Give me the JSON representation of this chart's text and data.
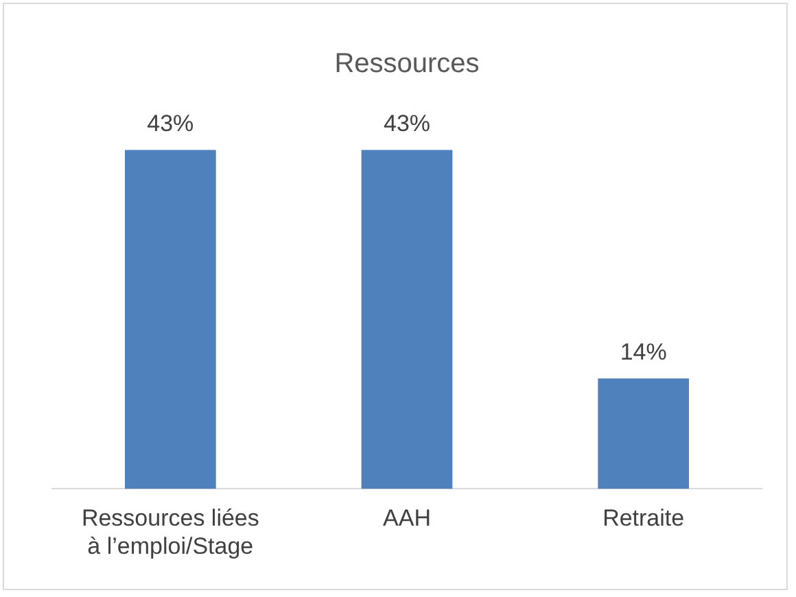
{
  "chart_data": {
    "type": "bar",
    "title": "Ressources",
    "categories": [
      "Ressources liées à l’emploi/Stage",
      "AAH",
      "Retraite"
    ],
    "values": [
      43,
      43,
      14
    ],
    "value_labels": [
      "43%",
      "43%",
      "14%"
    ],
    "color": "#4f81bd",
    "grid": false,
    "legend": false
  }
}
